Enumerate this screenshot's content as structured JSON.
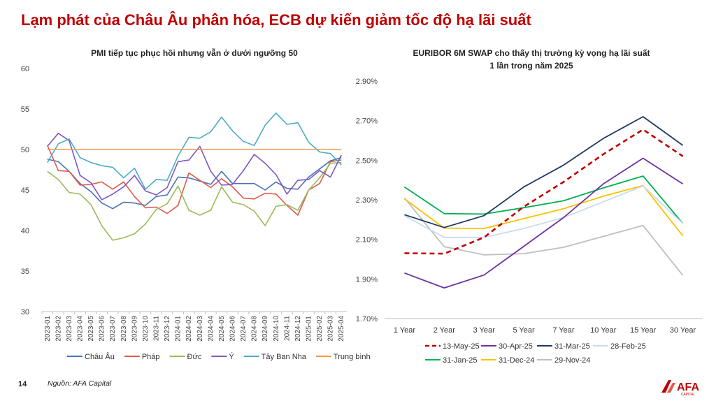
{
  "page": {
    "title": "Lạm phát của Châu Âu phân hóa, ECB dự kiến giảm tốc độ hạ lãi suất",
    "page_number": "14",
    "source": "Nguồn: AFA Capital",
    "logo_text": "AFA",
    "logo_subtext": "CAPITAL",
    "brand_color": "#c00000"
  },
  "chart_data": [
    {
      "type": "line",
      "title": "PMI tiếp tục phục hồi nhưng vẫn ở dưới ngưỡng 50",
      "xlabel": "",
      "ylabel": "",
      "ylim": [
        30,
        60
      ],
      "yticks": [
        30,
        35,
        40,
        45,
        50,
        55,
        60
      ],
      "categories": [
        "2023-01",
        "2023-02",
        "2023-03",
        "2023-04",
        "2023-05",
        "2023-06",
        "2023-07",
        "2023-08",
        "2023-09",
        "2023-10",
        "2023-11",
        "2023-12",
        "2024-01",
        "2024-02",
        "2024-03",
        "2024-04",
        "2024-05",
        "2024-06",
        "2024-07",
        "2024-08",
        "2024-09",
        "2024-10",
        "2024-11",
        "2024-12",
        "2025-01",
        "2025-02",
        "2025-03",
        "2025-04"
      ],
      "grid": false,
      "legend_position": "bottom",
      "series": [
        {
          "name": "Châu Âu",
          "color": "#4a72b8",
          "values": [
            48.8,
            48.5,
            47.3,
            45.8,
            44.8,
            43.4,
            42.7,
            43.5,
            43.4,
            43.1,
            44.2,
            44.4,
            46.6,
            46.5,
            46.1,
            45.7,
            47.3,
            45.8,
            45.8,
            45.8,
            45.0,
            46.0,
            45.2,
            45.1,
            46.6,
            47.6,
            48.6,
            49.0
          ]
        },
        {
          "name": "Pháp",
          "color": "#e15a4a",
          "values": [
            50.5,
            47.4,
            47.3,
            45.6,
            45.7,
            46.0,
            45.1,
            46.0,
            44.2,
            42.8,
            42.9,
            42.1,
            43.1,
            47.1,
            46.2,
            45.3,
            46.4,
            45.4,
            44.0,
            43.9,
            44.6,
            44.5,
            43.1,
            41.9,
            45.0,
            45.8,
            48.5,
            48.7
          ]
        },
        {
          "name": "Đức",
          "color": "#9bbb59",
          "values": [
            47.3,
            46.3,
            44.7,
            44.5,
            43.2,
            40.6,
            38.8,
            39.1,
            39.6,
            40.8,
            42.6,
            43.3,
            45.5,
            42.5,
            41.9,
            42.5,
            45.4,
            43.5,
            43.2,
            42.4,
            40.6,
            43.0,
            43.2,
            42.5,
            45.0,
            46.5,
            48.3,
            48.4
          ]
        },
        {
          "name": "Ý",
          "color": "#7e57c2",
          "values": [
            50.4,
            52.0,
            51.1,
            46.8,
            45.9,
            43.8,
            44.5,
            45.4,
            46.8,
            44.9,
            44.4,
            45.3,
            48.5,
            48.7,
            50.4,
            47.3,
            45.6,
            45.7,
            47.4,
            49.4,
            48.3,
            46.9,
            44.5,
            46.2,
            46.3,
            47.4,
            46.6,
            49.3
          ]
        },
        {
          "name": "Tây Ban Nha",
          "color": "#4bacc6",
          "values": [
            48.4,
            50.7,
            51.3,
            49.0,
            48.4,
            48.0,
            47.8,
            46.5,
            47.7,
            45.1,
            46.3,
            46.2,
            49.2,
            51.5,
            51.4,
            52.2,
            54.0,
            52.3,
            51.0,
            50.5,
            53.0,
            54.5,
            53.1,
            53.3,
            50.9,
            49.7,
            49.5,
            48.1
          ]
        },
        {
          "name": "Trung bình",
          "color": "#f79646",
          "values": [
            50,
            50,
            50,
            50,
            50,
            50,
            50,
            50,
            50,
            50,
            50,
            50,
            50,
            50,
            50,
            50,
            50,
            50,
            50,
            50,
            50,
            50,
            50,
            50,
            50,
            50,
            50,
            50
          ]
        }
      ]
    },
    {
      "type": "line",
      "title": "EURIBOR 6M SWAP cho thấy thị trường kỳ vọng hạ lãi suất 1 lần trong năm 2025",
      "title_lines": [
        "EURIBOR 6M SWAP cho thấy thị trường kỳ vọng hạ lãi suất",
        "1 lần trong năm 2025"
      ],
      "xlabel": "",
      "ylabel": "",
      "ylim": [
        1.7,
        2.9
      ],
      "yticks": [
        "1.70%",
        "1.90%",
        "2.10%",
        "2.30%",
        "2.50%",
        "2.70%",
        "2.90%"
      ],
      "categories": [
        "1 Year",
        "2 Year",
        "3 Year",
        "5 Year",
        "7 Year",
        "10 Year",
        "15 Year",
        "30 Year"
      ],
      "grid": false,
      "legend_position": "bottom",
      "series": [
        {
          "name": "13-May-25",
          "color": "#c00000",
          "dashed": true,
          "values": [
            2.03,
            2.028,
            2.11,
            2.265,
            2.39,
            2.53,
            2.655,
            2.52
          ]
        },
        {
          "name": "30-Apr-25",
          "color": "#7030a0",
          "values": [
            1.93,
            1.855,
            1.92,
            2.065,
            2.21,
            2.38,
            2.51,
            2.38
          ]
        },
        {
          "name": "31-Mar-25",
          "color": "#1f3864",
          "values": [
            2.225,
            2.16,
            2.22,
            2.365,
            2.475,
            2.61,
            2.72,
            2.575
          ]
        },
        {
          "name": "28-Feb-25",
          "color": "#c9dcef",
          "values": [
            2.22,
            2.11,
            2.11,
            2.155,
            2.21,
            2.29,
            2.37,
            2.18
          ]
        },
        {
          "name": "31-Jan-25",
          "color": "#00b050",
          "values": [
            2.365,
            2.23,
            2.228,
            2.26,
            2.295,
            2.36,
            2.42,
            2.18
          ]
        },
        {
          "name": "31-Dec-24",
          "color": "#ffc000",
          "values": [
            2.305,
            2.157,
            2.155,
            2.205,
            2.255,
            2.318,
            2.372,
            2.118
          ]
        },
        {
          "name": "29-Nov-24",
          "color": "#bfbfbf",
          "values": [
            2.31,
            2.063,
            2.022,
            2.028,
            2.06,
            2.115,
            2.17,
            1.918
          ]
        }
      ]
    }
  ]
}
